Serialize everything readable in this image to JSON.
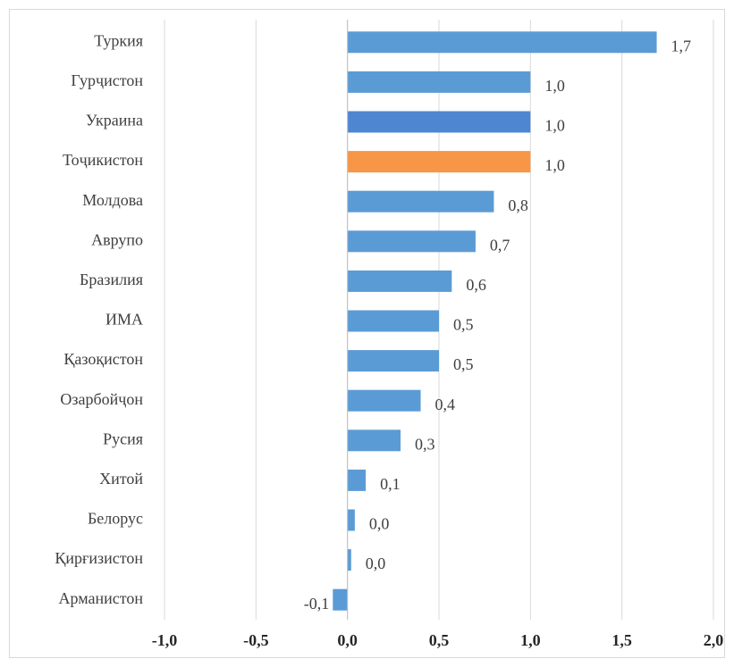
{
  "chart_data": {
    "type": "barh",
    "categories": [
      "Туркия",
      "Гурҷистон",
      "Украина",
      "Тоҷикистон",
      "Молдова",
      "Аврупо",
      "Бразилия",
      "ИМА",
      "Қазоқистон",
      "Озарбойҷон",
      "Русия",
      "Хитой",
      "Белорус",
      "Қирғизистон",
      "Арманистон"
    ],
    "values": [
      1.69,
      1.0,
      1.0,
      1.0,
      0.8,
      0.7,
      0.57,
      0.5,
      0.5,
      0.4,
      0.29,
      0.1,
      0.04,
      0.02,
      -0.08
    ],
    "value_labels": [
      "1,7",
      "1,0",
      "1,0",
      "1,0",
      "0,8",
      "0,7",
      "0,6",
      "0,5",
      "0,5",
      "0,4",
      "0,3",
      "0,1",
      "0,0",
      "0,0",
      "-0,1"
    ],
    "colors": [
      "#5b9bd5",
      "#5b9bd5",
      "#4f86d2",
      "#f79646",
      "#5b9bd5",
      "#5b9bd5",
      "#5b9bd5",
      "#5b9bd5",
      "#5b9bd5",
      "#5b9bd5",
      "#5b9bd5",
      "#5b9bd5",
      "#5b9bd5",
      "#5b9bd5",
      "#5b9bd5"
    ],
    "xlim": [
      -1.0,
      2.0
    ],
    "xticks": [
      {
        "value": -1.0,
        "label": "-1,0"
      },
      {
        "value": -0.5,
        "label": "-0,5"
      },
      {
        "value": 0.0,
        "label": "0,0"
      },
      {
        "value": 0.5,
        "label": "0,5"
      },
      {
        "value": 1.0,
        "label": "1,0"
      },
      {
        "value": 1.5,
        "label": "1,5"
      },
      {
        "value": 2.0,
        "label": "2,0"
      }
    ],
    "grid": true
  }
}
